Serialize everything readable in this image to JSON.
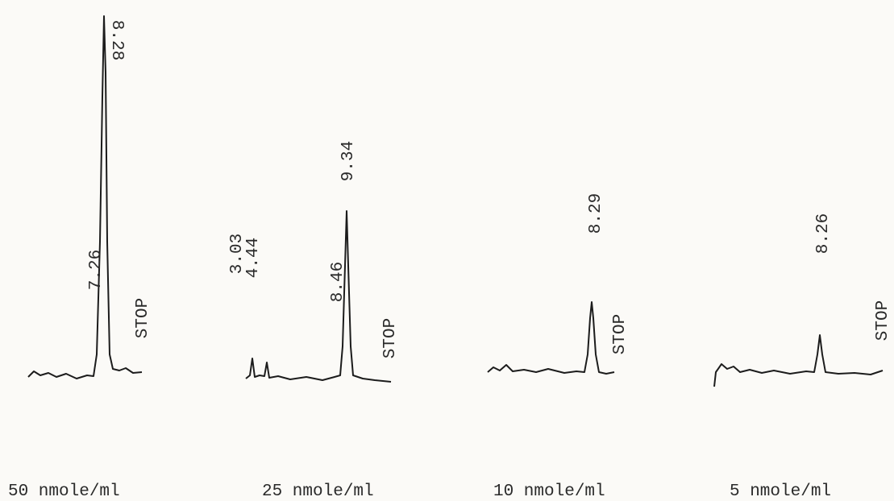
{
  "panels": [
    {
      "peaks": [
        "8.28",
        "7.26"
      ],
      "stop": "STOP",
      "caption": "50 nmole/ml"
    },
    {
      "peaks": [
        "9.34",
        "3.03",
        "4.44",
        "8.46"
      ],
      "stop": "STOP",
      "caption": "25 nmole/ml"
    },
    {
      "peaks": [
        "8.29"
      ],
      "stop": "STOP",
      "caption": "10 nmole/ml"
    },
    {
      "peaks": [
        "8.26"
      ],
      "stop": "STOP",
      "caption": "5 nmole/ml"
    }
  ]
}
